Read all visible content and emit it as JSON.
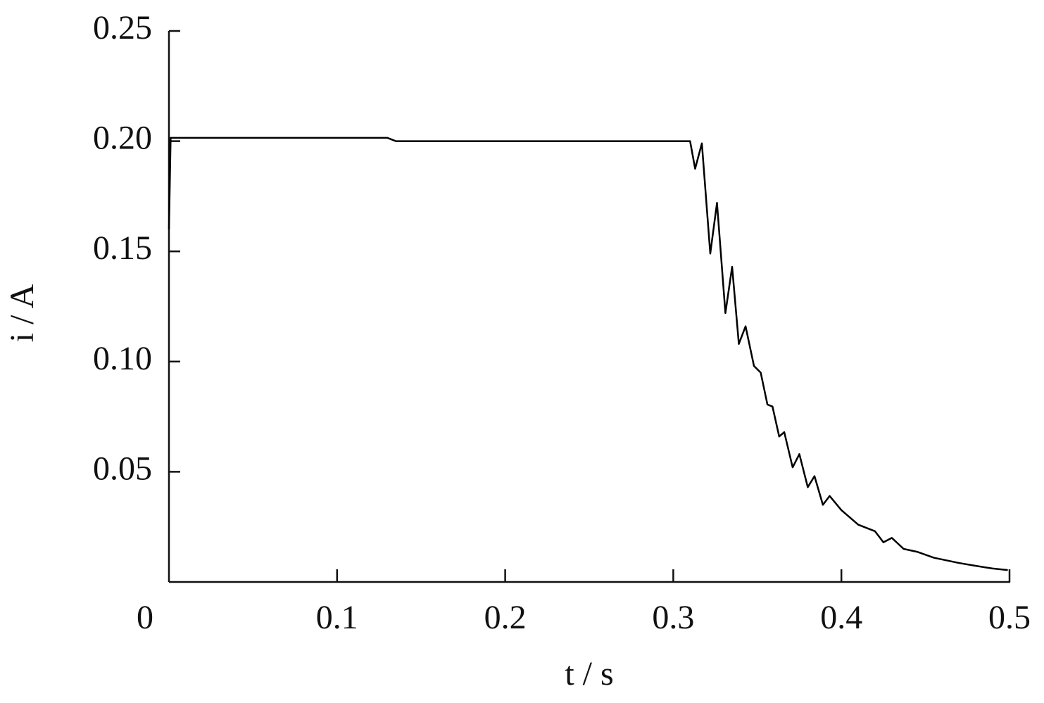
{
  "chart_data": {
    "type": "line",
    "xlabel": "t / s",
    "ylabel": "i / A",
    "x": [
      0,
      0.001,
      0.13,
      0.135,
      0.31,
      0.313,
      0.317,
      0.322,
      0.326,
      0.331,
      0.335,
      0.339,
      0.343,
      0.348,
      0.352,
      0.356,
      0.359,
      0.363,
      0.366,
      0.371,
      0.375,
      0.38,
      0.384,
      0.389,
      0.393,
      0.4,
      0.41,
      0.42,
      0.425,
      0.43,
      0.437,
      0.445,
      0.455,
      0.47,
      0.48,
      0.49,
      0.499
    ],
    "series": [
      {
        "color": "#000000",
        "values": [
          0.16,
          0.2015,
          0.2015,
          0.2,
          0.2,
          0.1875,
          0.199,
          0.149,
          0.172,
          0.122,
          0.143,
          0.108,
          0.116,
          0.098,
          0.095,
          0.0805,
          0.0796,
          0.066,
          0.068,
          0.052,
          0.058,
          0.043,
          0.048,
          0.035,
          0.039,
          0.0326,
          0.026,
          0.023,
          0.018,
          0.02,
          0.015,
          0.0137,
          0.011,
          0.0086,
          0.0073,
          0.0061,
          0.0054
        ]
      }
    ],
    "xlim": [
      0,
      0.5
    ],
    "xticks": [
      0,
      0.1,
      0.2,
      0.3,
      0.4,
      0.5
    ],
    "ylim": [
      0,
      0.25
    ],
    "yticks": [
      {
        "value": 0.05,
        "label": "0.05"
      },
      {
        "value": 0.1,
        "label": "0.10"
      },
      0.15,
      {
        "value": 0.2,
        "label": "0.20"
      },
      0.25
    ],
    "grid": false
  }
}
